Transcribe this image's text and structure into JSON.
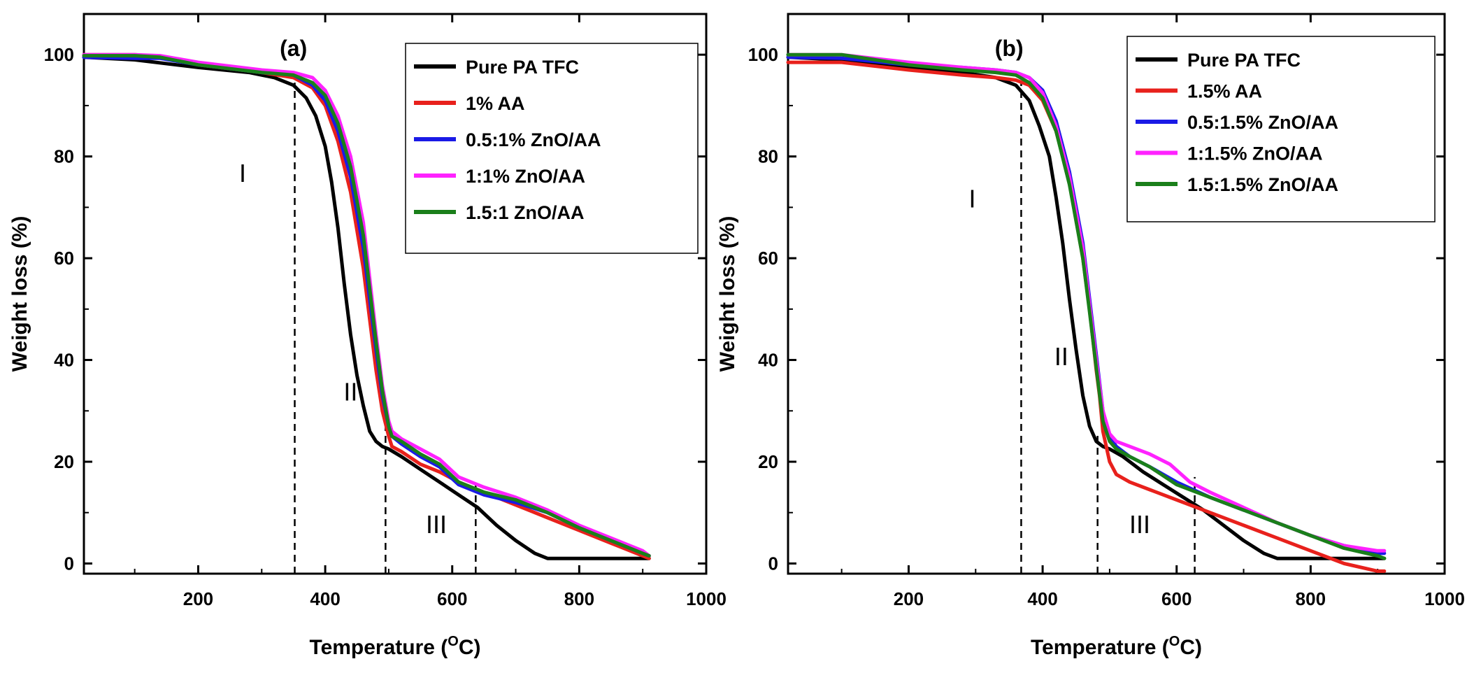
{
  "chart_data": [
    {
      "type": "line",
      "panel_label": "(a)",
      "xlabel_main": "Temperature (",
      "xlabel_sup": "O",
      "xlabel_end": "C)",
      "ylabel": "Weight loss (%)",
      "xlim": [
        20,
        1000
      ],
      "ylim": [
        -2,
        108
      ],
      "xticks": [
        200,
        400,
        600,
        800,
        1000
      ],
      "xtick_labels": [
        "200",
        "400",
        "600",
        "800",
        "1000"
      ],
      "yticks": [
        0,
        20,
        40,
        60,
        80,
        100
      ],
      "ytick_labels": [
        "0",
        "20",
        "40",
        "60",
        "80",
        "100"
      ],
      "legend_position": "top-right",
      "dividers": [
        {
          "x": 352,
          "y_top": 94.5
        },
        {
          "x": 495,
          "y_top": 27
        },
        {
          "x": 637,
          "y_top": 16
        }
      ],
      "regions": [
        {
          "label": "I",
          "x": 270,
          "y": 75
        },
        {
          "label": "II",
          "x": 440,
          "y": 32
        },
        {
          "label": "III",
          "x": 575,
          "y": 6
        }
      ],
      "series": [
        {
          "name": "Pure PA TFC",
          "color": "#000000",
          "x": [
            20,
            100,
            200,
            280,
            320,
            350,
            370,
            385,
            400,
            410,
            420,
            430,
            440,
            450,
            460,
            470,
            480,
            490,
            500,
            520,
            550,
            580,
            610,
            640,
            670,
            700,
            730,
            750,
            800,
            850,
            900,
            910
          ],
          "y": [
            99.5,
            99,
            97.5,
            96.5,
            95.5,
            94,
            91.5,
            88,
            82,
            75,
            66,
            55,
            45,
            37,
            31,
            26,
            24,
            23,
            22.5,
            21,
            18.5,
            16,
            13.5,
            11,
            7.5,
            4.5,
            2,
            1,
            1,
            1,
            1,
            1
          ]
        },
        {
          "name": "1% AA",
          "color": "#e8211c",
          "x": [
            20,
            100,
            140,
            200,
            300,
            350,
            380,
            400,
            420,
            440,
            460,
            470,
            480,
            490,
            500,
            505,
            520,
            550,
            580,
            610,
            650,
            700,
            750,
            800,
            850,
            900,
            910
          ],
          "y": [
            100,
            100,
            99.7,
            98,
            96.5,
            95.5,
            93.5,
            90,
            83,
            73,
            58,
            48,
            38,
            30,
            25,
            23,
            22,
            19.5,
            18,
            16,
            14,
            11.5,
            9,
            6.5,
            4,
            1.5,
            1
          ]
        },
        {
          "name": "0.5:1% ZnO/AA",
          "color": "#1a1ae6",
          "x": [
            20,
            100,
            140,
            200,
            300,
            350,
            380,
            400,
            420,
            440,
            460,
            470,
            480,
            490,
            500,
            505,
            520,
            550,
            580,
            610,
            650,
            700,
            750,
            800,
            850,
            900,
            910
          ],
          "y": [
            99.5,
            99.3,
            99.3,
            98,
            96.5,
            96,
            94,
            91,
            85,
            76,
            62,
            52,
            42,
            33,
            27,
            25,
            23.5,
            21,
            19,
            15.5,
            13.5,
            12,
            10,
            7,
            4.5,
            2,
            1.5
          ]
        },
        {
          "name": "1:1% ZnO/AA",
          "color": "#ff22ff",
          "x": [
            20,
            100,
            140,
            200,
            300,
            350,
            380,
            400,
            420,
            440,
            460,
            470,
            480,
            490,
            500,
            505,
            520,
            550,
            580,
            610,
            650,
            700,
            750,
            800,
            850,
            900,
            910
          ],
          "y": [
            100,
            100,
            99.8,
            98.5,
            97,
            96.5,
            95.5,
            93,
            88,
            80,
            67,
            56,
            45,
            35,
            28,
            26,
            24.5,
            22.5,
            20.5,
            17,
            15,
            13,
            10.5,
            7.5,
            5,
            2.5,
            1.5
          ]
        },
        {
          "name": "1.5:1 ZnO/AA",
          "color": "#1a7f1a",
          "x": [
            20,
            100,
            140,
            200,
            300,
            350,
            380,
            400,
            420,
            440,
            460,
            470,
            480,
            490,
            500,
            505,
            520,
            550,
            580,
            610,
            650,
            700,
            750,
            800,
            850,
            900,
            910
          ],
          "y": [
            99.8,
            99.8,
            99.5,
            98,
            96.5,
            96,
            94.5,
            92,
            86.5,
            78,
            64.5,
            54,
            43.5,
            34,
            27,
            25,
            24,
            21.5,
            19.5,
            16,
            14,
            12.5,
            10,
            7,
            4.5,
            2,
            1.5
          ]
        }
      ],
      "legend": [
        "Pure PA TFC",
        "1% AA",
        "0.5:1% ZnO/AA",
        "1:1% ZnO/AA",
        "1.5:1 ZnO/AA"
      ]
    },
    {
      "type": "line",
      "panel_label": "(b)",
      "xlabel_main": "Temperature (",
      "xlabel_sup": "O",
      "xlabel_end": "C)",
      "ylabel": "Weight loss (%)",
      "xlim": [
        20,
        1000
      ],
      "ylim": [
        -2,
        108
      ],
      "xticks": [
        200,
        400,
        600,
        800,
        1000
      ],
      "xtick_labels": [
        "200",
        "400",
        "600",
        "800",
        "1000"
      ],
      "yticks": [
        0,
        20,
        40,
        60,
        80,
        100
      ],
      "ytick_labels": [
        "0",
        "20",
        "40",
        "60",
        "80",
        "100"
      ],
      "legend_position": "top-right",
      "dividers": [
        {
          "x": 368,
          "y_top": 94.5
        },
        {
          "x": 482,
          "y_top": 26
        },
        {
          "x": 627,
          "y_top": 17
        }
      ],
      "regions": [
        {
          "label": "I",
          "x": 295,
          "y": 70
        },
        {
          "label": "II",
          "x": 428,
          "y": 39
        },
        {
          "label": "III",
          "x": 545,
          "y": 6
        }
      ],
      "series": [
        {
          "name": "Pure PA TFC",
          "color": "#000000",
          "x": [
            20,
            100,
            200,
            280,
            330,
            360,
            380,
            395,
            410,
            420,
            430,
            440,
            450,
            460,
            470,
            480,
            490,
            500,
            520,
            550,
            580,
            610,
            640,
            670,
            700,
            730,
            750,
            800,
            850,
            900,
            910
          ],
          "y": [
            99.5,
            99,
            97.5,
            96.5,
            95.5,
            94,
            91,
            86,
            80,
            72,
            63,
            52,
            42,
            33,
            27,
            24,
            23,
            22.5,
            21,
            18,
            15.5,
            13,
            10.5,
            7.5,
            4.5,
            2,
            1,
            1,
            1,
            1,
            1
          ]
        },
        {
          "name": "1.5% AA",
          "color": "#e8211c",
          "x": [
            20,
            100,
            200,
            280,
            330,
            360,
            380,
            400,
            420,
            440,
            460,
            470,
            480,
            485,
            490,
            500,
            510,
            530,
            560,
            600,
            650,
            700,
            750,
            800,
            850,
            900,
            910
          ],
          "y": [
            98.5,
            98.5,
            97,
            96,
            95.5,
            95,
            94,
            91,
            85,
            75,
            60,
            50,
            38,
            33,
            26,
            20,
            17.5,
            16,
            14.5,
            12.5,
            10,
            7.5,
            5,
            2.5,
            0,
            -1.5,
            -1.5
          ]
        },
        {
          "name": "0.5:1.5% ZnO/AA",
          "color": "#1a1ae6",
          "x": [
            20,
            100,
            200,
            280,
            330,
            360,
            380,
            400,
            420,
            440,
            460,
            470,
            480,
            490,
            500,
            510,
            530,
            560,
            600,
            650,
            700,
            750,
            800,
            850,
            900,
            910
          ],
          "y": [
            99.5,
            99.3,
            98,
            97.5,
            97,
            96.5,
            95.5,
            93,
            87,
            77,
            63,
            52,
            41,
            30,
            25,
            23,
            21,
            19,
            16,
            13,
            10.5,
            8,
            5.5,
            3.5,
            2,
            2
          ]
        },
        {
          "name": "1:1.5% ZnO/AA",
          "color": "#ff22ff",
          "x": [
            20,
            100,
            200,
            280,
            330,
            360,
            380,
            400,
            420,
            440,
            460,
            470,
            480,
            490,
            500,
            510,
            530,
            560,
            590,
            620,
            650,
            700,
            750,
            800,
            850,
            900,
            910
          ],
          "y": [
            100,
            100,
            98.5,
            97.5,
            97,
            96.5,
            95.5,
            92.5,
            86,
            76,
            62,
            51,
            40,
            30,
            25.5,
            24,
            23,
            21.5,
            19.5,
            16,
            14,
            11,
            8,
            5.5,
            3.5,
            2.5,
            2.5
          ]
        },
        {
          "name": "1.5:1.5% ZnO/AA",
          "color": "#1a7f1a",
          "x": [
            20,
            100,
            200,
            280,
            330,
            360,
            380,
            400,
            420,
            440,
            460,
            470,
            480,
            490,
            500,
            510,
            530,
            560,
            600,
            650,
            700,
            750,
            800,
            850,
            900,
            910
          ],
          "y": [
            100,
            100,
            98,
            97,
            96.5,
            96,
            94.5,
            91.5,
            85,
            74.5,
            60,
            49.5,
            38.5,
            28,
            24,
            22.5,
            21,
            19,
            15.5,
            13,
            10.5,
            8,
            5.5,
            3,
            1.5,
            1
          ]
        }
      ],
      "legend": [
        "Pure PA TFC",
        "1.5% AA",
        "0.5:1.5% ZnO/AA",
        "1:1.5% ZnO/AA",
        "1.5:1.5% ZnO/AA"
      ]
    }
  ]
}
